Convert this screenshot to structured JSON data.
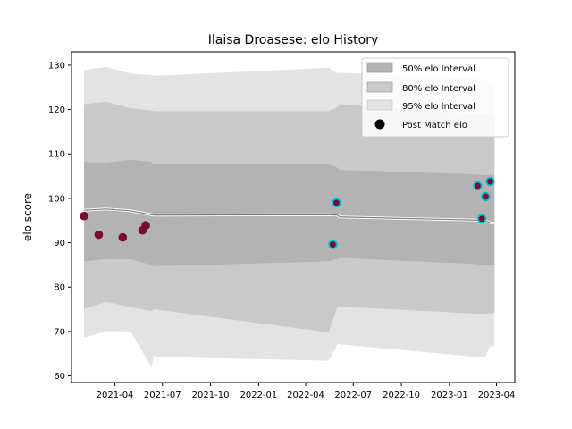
{
  "chart_data": {
    "type": "scatter",
    "title": "Ilaisa Droasese: elo History",
    "xlabel": "",
    "ylabel": "elo score",
    "ylim": [
      58.5,
      133
    ],
    "yticks": [
      60,
      70,
      80,
      90,
      100,
      110,
      120,
      130
    ],
    "xlim": [
      "2021-01-08",
      "2023-05-06"
    ],
    "xticks": [
      {
        "date": "2021-04-01",
        "label": "2021-04"
      },
      {
        "date": "2021-07-01",
        "label": "2021-07"
      },
      {
        "date": "2021-10-01",
        "label": "2021-10"
      },
      {
        "date": "2022-01-01",
        "label": "2022-01"
      },
      {
        "date": "2022-04-01",
        "label": "2022-04"
      },
      {
        "date": "2022-07-01",
        "label": "2022-07"
      },
      {
        "date": "2022-10-01",
        "label": "2022-10"
      },
      {
        "date": "2023-01-01",
        "label": "2023-01"
      },
      {
        "date": "2023-04-01",
        "label": "2023-04"
      }
    ],
    "grid": false,
    "legend_position": "upper right",
    "legend": {
      "interval50": "50% elo Interval",
      "interval80": "80% elo Interval",
      "interval95": "95% elo Interval",
      "points": "Post Match elo"
    },
    "colors": {
      "interval50": "#b3b3b3",
      "interval80": "#c9c9c9",
      "interval95": "#e3e3e3",
      "mean_line": "#7f7f7f",
      "point_fill": "#7a0a2a",
      "point_edge_highlight": "#00bcd4",
      "legend_marker": "#000000"
    },
    "band_dates": [
      "2021-02-01",
      "2021-03-15",
      "2021-05-01",
      "2021-06-10",
      "2021-06-15",
      "2022-05-15",
      "2022-06-01",
      "2022-06-05",
      "2023-02-20",
      "2023-03-10",
      "2023-03-20",
      "2023-03-28"
    ],
    "mean": [
      97.3,
      97.6,
      97.2,
      96.3,
      96.2,
      96.3,
      96.2,
      95.8,
      95.1,
      94.9,
      94.5,
      94.4
    ],
    "band50": {
      "upper": [
        108.2,
        108.0,
        108.7,
        108.2,
        107.6,
        107.6,
        106.9,
        106.4,
        105.4,
        105.2,
        105.3,
        105.3
      ],
      "lower": [
        85.8,
        86.3,
        86.3,
        85.0,
        84.7,
        85.8,
        86.4,
        86.6,
        85.2,
        84.9,
        85.1,
        85.1
      ]
    },
    "band80": {
      "upper": [
        121.2,
        121.8,
        120.3,
        119.8,
        119.6,
        119.6,
        120.6,
        121.2,
        119.0,
        119.1,
        119.1,
        119.1
      ],
      "lower": [
        75.0,
        76.7,
        75.5,
        74.6,
        75.0,
        69.8,
        75.7,
        75.6,
        74.0,
        74.0,
        74.1,
        74.1
      ]
    },
    "band95": {
      "upper": [
        128.9,
        129.6,
        128.1,
        127.8,
        127.6,
        129.4,
        128.2,
        128.3,
        127.0,
        127.0,
        125.6,
        125.6
      ],
      "lower": [
        68.6,
        70.1,
        70.0,
        62.0,
        64.3,
        63.4,
        67.2,
        67.1,
        64.3,
        64.3,
        66.7,
        66.7
      ]
    },
    "points": [
      {
        "x": "2021-02-01",
        "y": 96.0,
        "highlight": false
      },
      {
        "x": "2021-03-01",
        "y": 91.8,
        "highlight": false
      },
      {
        "x": "2021-04-16",
        "y": 91.2,
        "highlight": false
      },
      {
        "x": "2021-05-24",
        "y": 92.8,
        "highlight": false
      },
      {
        "x": "2021-05-30",
        "y": 93.9,
        "highlight": false
      },
      {
        "x": "2022-05-23",
        "y": 89.6,
        "highlight": true
      },
      {
        "x": "2022-05-30",
        "y": 99.0,
        "highlight": true
      },
      {
        "x": "2023-02-24",
        "y": 102.8,
        "highlight": true
      },
      {
        "x": "2023-03-04",
        "y": 95.4,
        "highlight": true
      },
      {
        "x": "2023-03-11",
        "y": 100.4,
        "highlight": true
      },
      {
        "x": "2023-03-20",
        "y": 103.8,
        "highlight": true
      }
    ]
  }
}
